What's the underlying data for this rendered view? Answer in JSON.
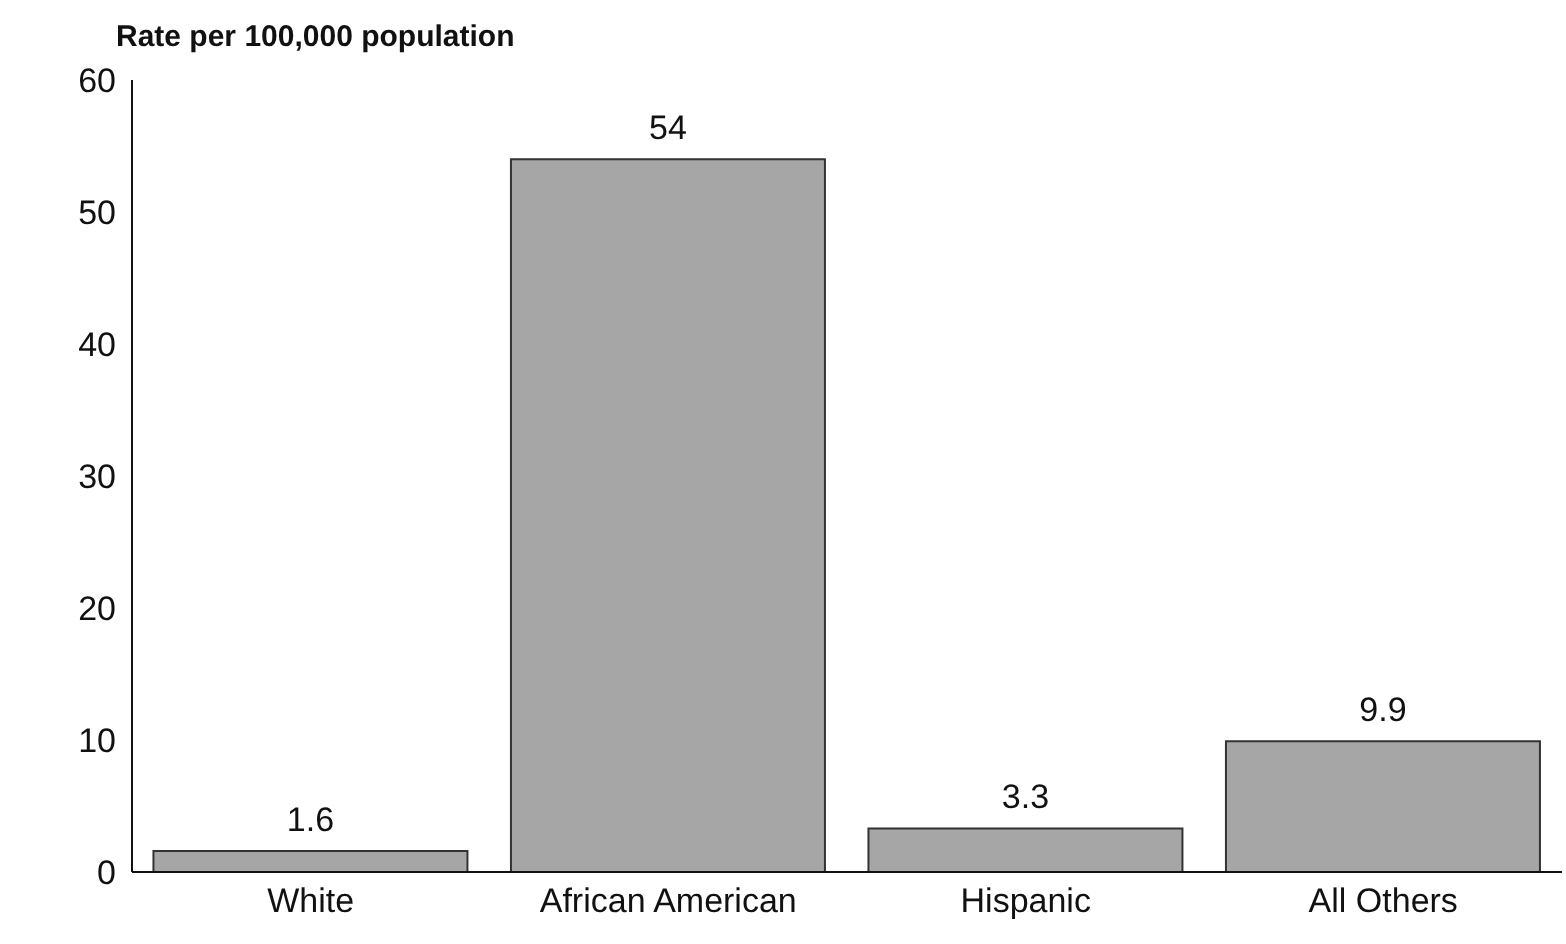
{
  "chart_data": {
    "type": "bar",
    "ylabel": "Rate per 100,000 population",
    "categories": [
      "White",
      "African American",
      "Hispanic",
      "All Others"
    ],
    "values": [
      1.6,
      54,
      3.3,
      9.9
    ],
    "color": "#a6a6a6",
    "ylim": [
      0,
      60
    ],
    "yticks": [
      0,
      10,
      20,
      30,
      40,
      50,
      60
    ],
    "data_labels": true,
    "grid": false,
    "legend": false
  }
}
